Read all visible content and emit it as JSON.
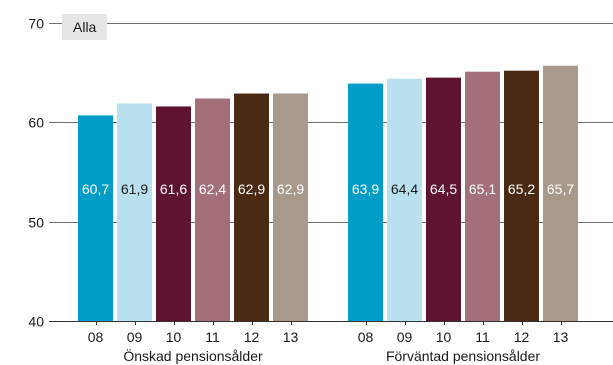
{
  "filter_label": "Alla",
  "chart_data": {
    "type": "bar",
    "title": "",
    "xlabel": "",
    "ylabel": "",
    "ylim": [
      40,
      70
    ],
    "yticks": [
      40,
      50,
      60,
      70
    ],
    "grid": true,
    "groups": [
      {
        "name": "Önskad pensionsålder",
        "categories": [
          "08",
          "09",
          "10",
          "11",
          "12",
          "13"
        ],
        "values": [
          60.7,
          61.9,
          61.6,
          62.4,
          62.9,
          62.9
        ],
        "labels": [
          "60,7",
          "61,9",
          "61,6",
          "62,4",
          "62,9",
          "62,9"
        ]
      },
      {
        "name": "Förväntad pensionsålder",
        "categories": [
          "08",
          "09",
          "10",
          "11",
          "12",
          "13"
        ],
        "values": [
          63.9,
          64.4,
          64.5,
          65.1,
          65.2,
          65.7
        ],
        "labels": [
          "63,9",
          "64,4",
          "64,5",
          "65,1",
          "65,2",
          "65,7"
        ]
      }
    ],
    "colors": [
      "#009cc8",
      "#b9e0ef",
      "#5e1430",
      "#a3707a",
      "#4b2a14",
      "#a79a8a"
    ],
    "label_colors": [
      "#ffffff",
      "#1a1a1a",
      "#ffffff",
      "#ffffff",
      "#ffffff",
      "#ffffff"
    ]
  }
}
